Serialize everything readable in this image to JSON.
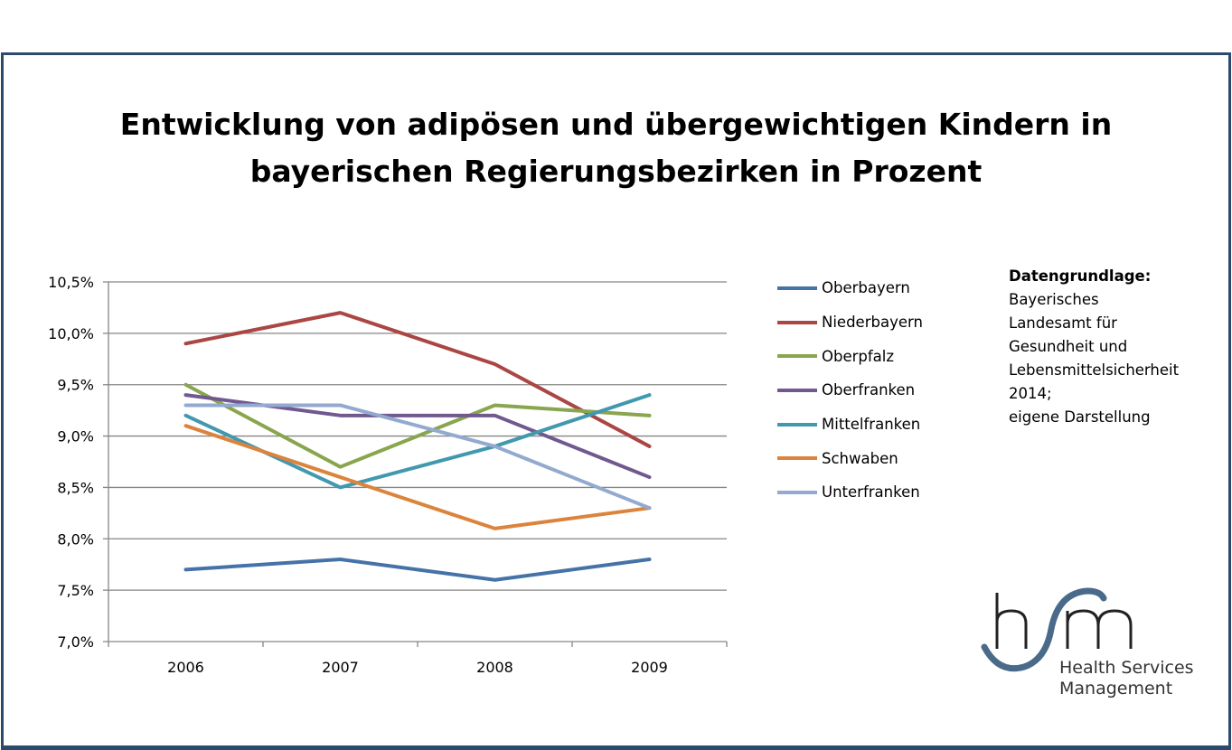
{
  "chart_data": {
    "type": "line",
    "title_lines": [
      "Entwicklung von adipösen und übergewichtigen Kindern in",
      "bayerischen Regierungsbezirken in Prozent"
    ],
    "categories": [
      "2006",
      "2007",
      "2008",
      "2009"
    ],
    "y_ticks": [
      {
        "value": 7.0,
        "label": "7,0%"
      },
      {
        "value": 7.5,
        "label": "7,5%"
      },
      {
        "value": 8.0,
        "label": "8,0%"
      },
      {
        "value": 8.5,
        "label": "8,5%"
      },
      {
        "value": 9.0,
        "label": "9,0%"
      },
      {
        "value": 9.5,
        "label": "9,5%"
      },
      {
        "value": 10.0,
        "label": "10,0%"
      },
      {
        "value": 10.5,
        "label": "10,5%"
      }
    ],
    "ylim": [
      7.0,
      10.5
    ],
    "grid": true,
    "legend_position": "right",
    "series": [
      {
        "name": "Oberbayern",
        "color": "#4572a7",
        "values": [
          7.7,
          7.8,
          7.6,
          7.8
        ]
      },
      {
        "name": "Niederbayern",
        "color": "#aa4643",
        "values": [
          9.9,
          10.2,
          9.7,
          8.9
        ]
      },
      {
        "name": "Oberpfalz",
        "color": "#89a54e",
        "values": [
          9.5,
          8.7,
          9.3,
          9.2
        ]
      },
      {
        "name": "Oberfranken",
        "color": "#71588f",
        "values": [
          9.4,
          9.2,
          9.2,
          8.6
        ]
      },
      {
        "name": "Mittelfranken",
        "color": "#4198af",
        "values": [
          9.2,
          8.5,
          8.9,
          9.4
        ]
      },
      {
        "name": "Schwaben",
        "color": "#db843d",
        "values": [
          9.1,
          8.6,
          8.1,
          8.3
        ]
      },
      {
        "name": "Unterfranken",
        "color": "#93a9cf",
        "values": [
          9.3,
          9.3,
          8.9,
          8.3
        ]
      }
    ]
  },
  "source_note": {
    "heading": "Datengrundlage:",
    "lines": [
      "Bayerisches",
      "Landesamt für",
      "Gesundheit und",
      "Lebensmittelsicherheit",
      "2014;",
      "eigene Darstellung"
    ]
  },
  "logo": {
    "lines": [
      "Health Services",
      "Management"
    ],
    "icon": "hsm-logo-icon",
    "color": "#4a6a8a"
  }
}
